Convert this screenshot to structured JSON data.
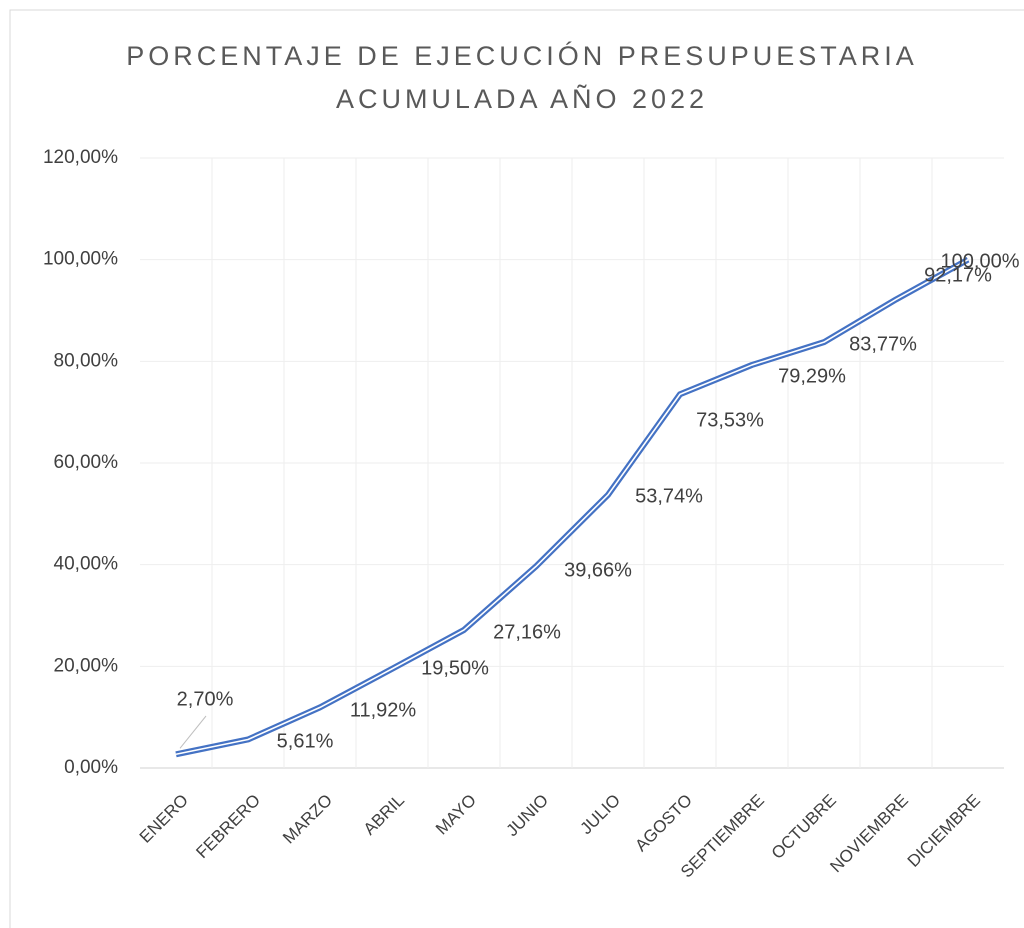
{
  "chart_data": {
    "type": "line",
    "title": [
      "PORCENTAJE DE EJECUCIÓN PRESUPUESTARIA",
      "ACUMULADA AÑO 2022"
    ],
    "categories": [
      "ENERO",
      "FEBRERO",
      "MARZO",
      "ABRIL",
      "MAYO",
      "JUNIO",
      "JULIO",
      "AGOSTO",
      "SEPTIEMBRE",
      "OCTUBRE",
      "NOVIEMBRE",
      "DICIEMBRE"
    ],
    "series": [
      {
        "name": "Ejecución",
        "color": "#4472c4",
        "values": [
          2.7,
          5.61,
          11.92,
          19.5,
          27.16,
          39.66,
          53.74,
          73.53,
          79.29,
          83.77,
          92.17,
          100
        ],
        "value_labels": [
          "2,70%",
          "5,61%",
          "11,92%",
          "19,50%",
          "27,16%",
          "39,66%",
          "53,74%",
          "73,53%",
          "79,29%",
          "83,77%",
          "92,17%",
          "100,00%"
        ]
      }
    ],
    "ylim": [
      0,
      120
    ],
    "yticks": [
      {
        "value": 0,
        "label": "0,00%"
      },
      {
        "value": 20,
        "label": "20,00%"
      },
      {
        "value": 40,
        "label": "40,00%"
      },
      {
        "value": 60,
        "label": "60,00%"
      },
      {
        "value": 80,
        "label": "80,00%"
      },
      {
        "value": 100,
        "label": "100,00%"
      },
      {
        "value": 120,
        "label": "120,00%"
      }
    ],
    "grid": true
  }
}
